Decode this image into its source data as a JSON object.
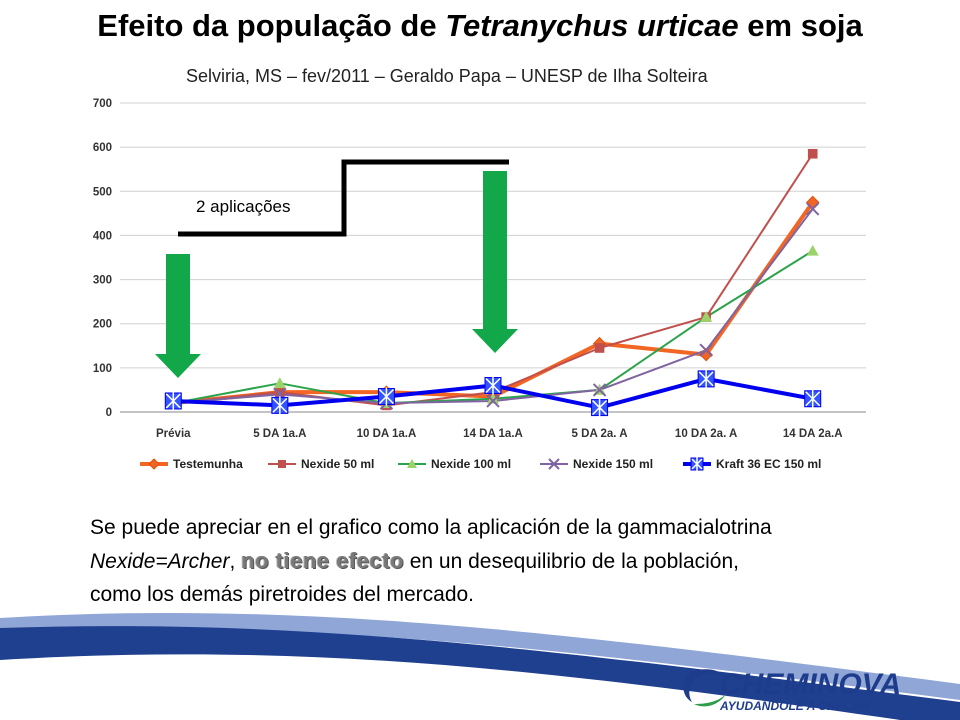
{
  "title": {
    "part1": "Efeito da população de ",
    "part2": "Tetranychus  urticae",
    "part3": " em soja"
  },
  "subtitle": "Selviria, MS – fev/2011 – Geraldo Papa – UNESP de Ilha Solteira",
  "annotation": "2 aplicações",
  "body": {
    "line1": "Se puede apreciar en el grafico como la aplicación de la gammacialotrina",
    "line2_italic": "Nexide=Archer",
    "line2_comma": ", ",
    "line2_emph": "no tiene efecto",
    "line2_rest": " en un desequilibrio de la población,",
    "line3": "como los demás piretroides del mercado."
  },
  "logo": {
    "name": "CHEMINOVA",
    "tagline": "AYUDANDOLE A CRECER"
  },
  "colors": {
    "band_dark": "#1f3f8f",
    "band_light": "#8fa6d6",
    "logo_blue": "#1e3c8c",
    "logo_green": "#2e9e4a",
    "arrow_green": "#12a84a"
  },
  "chart_data": {
    "type": "line",
    "categories": [
      "Prévia",
      "5 DA 1a.A",
      "10 DA 1a.A",
      "14 DA 1a.A",
      "5 DA 2a. A",
      "10 DA 2a. A",
      "14 DA 2a.A"
    ],
    "ylim": [
      0,
      700
    ],
    "yticks": [
      0,
      100,
      200,
      300,
      400,
      500,
      600,
      700
    ],
    "grid": true,
    "legend_position": "bottom",
    "series": [
      {
        "name": "Testemunha",
        "color": "#f26522",
        "marker": "diamond",
        "width": 4,
        "values": [
          20,
          45,
          45,
          35,
          155,
          130,
          475
        ]
      },
      {
        "name": "Nexide 50 ml",
        "color": "#c0504d",
        "marker": "square",
        "width": 2,
        "values": [
          20,
          45,
          15,
          45,
          145,
          215,
          585
        ]
      },
      {
        "name": "Nexide 100 ml",
        "color": "#2aa34a",
        "marker": "triangle",
        "width": 2,
        "values": [
          20,
          65,
          20,
          30,
          50,
          215,
          365
        ]
      },
      {
        "name": "Nexide 150 ml",
        "color": "#8064a2",
        "marker": "x",
        "width": 2,
        "values": [
          20,
          40,
          20,
          25,
          50,
          140,
          460
        ]
      },
      {
        "name": "Kraft 36 EC 150 ml",
        "color": "#0000ee",
        "marker": "star",
        "width": 4,
        "values": [
          25,
          15,
          35,
          60,
          10,
          75,
          30
        ]
      }
    ]
  }
}
